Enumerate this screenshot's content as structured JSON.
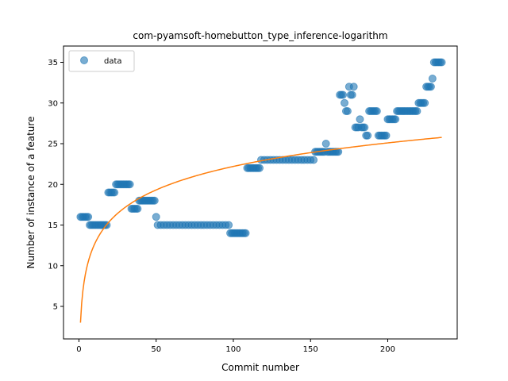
{
  "chart_data": {
    "type": "scatter",
    "title": "com-pyamsoft-homebutton_type_inference-logarithm",
    "xlabel": "Commit number",
    "ylabel": "Number of instance of a feature",
    "xlim": [
      -10,
      245
    ],
    "ylim": [
      1,
      37
    ],
    "xticks": [
      0,
      50,
      100,
      150,
      200
    ],
    "yticks": [
      5,
      10,
      15,
      20,
      25,
      30,
      35
    ],
    "grid": false,
    "legend": {
      "placement": "top-left",
      "entries": [
        "data"
      ]
    },
    "colors": {
      "data": "#1f77b4",
      "fit": "#ff7f0e"
    },
    "series": [
      {
        "name": "data",
        "kind": "scatter",
        "points": [
          [
            1,
            16
          ],
          [
            2,
            16
          ],
          [
            3,
            16
          ],
          [
            4,
            16
          ],
          [
            5,
            16
          ],
          [
            6,
            16
          ],
          [
            7,
            15
          ],
          [
            8,
            15
          ],
          [
            9,
            15
          ],
          [
            10,
            15
          ],
          [
            11,
            15
          ],
          [
            12,
            15
          ],
          [
            13,
            15
          ],
          [
            14,
            15
          ],
          [
            15,
            15
          ],
          [
            16,
            15
          ],
          [
            17,
            15
          ],
          [
            18,
            15
          ],
          [
            19,
            19
          ],
          [
            20,
            19
          ],
          [
            21,
            19
          ],
          [
            22,
            19
          ],
          [
            23,
            19
          ],
          [
            24,
            20
          ],
          [
            25,
            20
          ],
          [
            26,
            20
          ],
          [
            27,
            20
          ],
          [
            28,
            20
          ],
          [
            29,
            20
          ],
          [
            30,
            20
          ],
          [
            31,
            20
          ],
          [
            32,
            20
          ],
          [
            33,
            20
          ],
          [
            34,
            17
          ],
          [
            35,
            17
          ],
          [
            36,
            17
          ],
          [
            37,
            17
          ],
          [
            38,
            17
          ],
          [
            39,
            18
          ],
          [
            40,
            18
          ],
          [
            41,
            18
          ],
          [
            42,
            18
          ],
          [
            43,
            18
          ],
          [
            44,
            18
          ],
          [
            45,
            18
          ],
          [
            46,
            18
          ],
          [
            47,
            18
          ],
          [
            48,
            18
          ],
          [
            49,
            18
          ],
          [
            50,
            16
          ],
          [
            51,
            15
          ],
          [
            53,
            15
          ],
          [
            55,
            15
          ],
          [
            57,
            15
          ],
          [
            59,
            15
          ],
          [
            61,
            15
          ],
          [
            63,
            15
          ],
          [
            65,
            15
          ],
          [
            67,
            15
          ],
          [
            69,
            15
          ],
          [
            71,
            15
          ],
          [
            73,
            15
          ],
          [
            75,
            15
          ],
          [
            77,
            15
          ],
          [
            79,
            15
          ],
          [
            81,
            15
          ],
          [
            83,
            15
          ],
          [
            85,
            15
          ],
          [
            87,
            15
          ],
          [
            89,
            15
          ],
          [
            91,
            15
          ],
          [
            93,
            15
          ],
          [
            95,
            15
          ],
          [
            97,
            15
          ],
          [
            98,
            14
          ],
          [
            99,
            14
          ],
          [
            100,
            14
          ],
          [
            101,
            14
          ],
          [
            102,
            14
          ],
          [
            103,
            14
          ],
          [
            104,
            14
          ],
          [
            105,
            14
          ],
          [
            106,
            14
          ],
          [
            107,
            14
          ],
          [
            108,
            14
          ],
          [
            109,
            22
          ],
          [
            110,
            22
          ],
          [
            111,
            22
          ],
          [
            112,
            22
          ],
          [
            113,
            22
          ],
          [
            114,
            22
          ],
          [
            115,
            22
          ],
          [
            116,
            22
          ],
          [
            117,
            22
          ],
          [
            118,
            23
          ],
          [
            120,
            23
          ],
          [
            122,
            23
          ],
          [
            124,
            23
          ],
          [
            126,
            23
          ],
          [
            128,
            23
          ],
          [
            130,
            23
          ],
          [
            132,
            23
          ],
          [
            134,
            23
          ],
          [
            136,
            23
          ],
          [
            138,
            23
          ],
          [
            140,
            23
          ],
          [
            142,
            23
          ],
          [
            144,
            23
          ],
          [
            146,
            23
          ],
          [
            148,
            23
          ],
          [
            150,
            23
          ],
          [
            152,
            23
          ],
          [
            153,
            24
          ],
          [
            154,
            24
          ],
          [
            155,
            24
          ],
          [
            156,
            24
          ],
          [
            157,
            24
          ],
          [
            158,
            24
          ],
          [
            160,
            25
          ],
          [
            159,
            24
          ],
          [
            161,
            24
          ],
          [
            162,
            24
          ],
          [
            163,
            24
          ],
          [
            164,
            24
          ],
          [
            165,
            24
          ],
          [
            166,
            24
          ],
          [
            167,
            24
          ],
          [
            168,
            24
          ],
          [
            169,
            31
          ],
          [
            170,
            31
          ],
          [
            171,
            31
          ],
          [
            172,
            30
          ],
          [
            173,
            29
          ],
          [
            174,
            29
          ],
          [
            175,
            32
          ],
          [
            176,
            31
          ],
          [
            177,
            31
          ],
          [
            178,
            32
          ],
          [
            179,
            27
          ],
          [
            180,
            27
          ],
          [
            181,
            27
          ],
          [
            182,
            28
          ],
          [
            183,
            27
          ],
          [
            184,
            27
          ],
          [
            185,
            27
          ],
          [
            186,
            26
          ],
          [
            187,
            26
          ],
          [
            188,
            29
          ],
          [
            189,
            29
          ],
          [
            190,
            29
          ],
          [
            191,
            29
          ],
          [
            192,
            29
          ],
          [
            193,
            29
          ],
          [
            194,
            26
          ],
          [
            195,
            26
          ],
          [
            196,
            26
          ],
          [
            197,
            26
          ],
          [
            198,
            26
          ],
          [
            199,
            26
          ],
          [
            200,
            28
          ],
          [
            201,
            28
          ],
          [
            202,
            28
          ],
          [
            203,
            28
          ],
          [
            204,
            28
          ],
          [
            205,
            28
          ],
          [
            206,
            29
          ],
          [
            207,
            29
          ],
          [
            208,
            29
          ],
          [
            209,
            29
          ],
          [
            210,
            29
          ],
          [
            211,
            29
          ],
          [
            212,
            29
          ],
          [
            213,
            29
          ],
          [
            214,
            29
          ],
          [
            215,
            29
          ],
          [
            216,
            29
          ],
          [
            217,
            29
          ],
          [
            218,
            29
          ],
          [
            219,
            29
          ],
          [
            220,
            30
          ],
          [
            221,
            30
          ],
          [
            222,
            30
          ],
          [
            223,
            30
          ],
          [
            224,
            30
          ],
          [
            225,
            32
          ],
          [
            226,
            32
          ],
          [
            227,
            32
          ],
          [
            228,
            32
          ],
          [
            229,
            33
          ],
          [
            230,
            35
          ],
          [
            231,
            35
          ],
          [
            232,
            35
          ],
          [
            233,
            35
          ],
          [
            234,
            35
          ],
          [
            235,
            35
          ]
        ]
      },
      {
        "kind": "line",
        "function": "logarithm",
        "params": {
          "a": 3.0,
          "b": 4.17
        },
        "x_range": [
          1,
          235
        ]
      }
    ]
  }
}
